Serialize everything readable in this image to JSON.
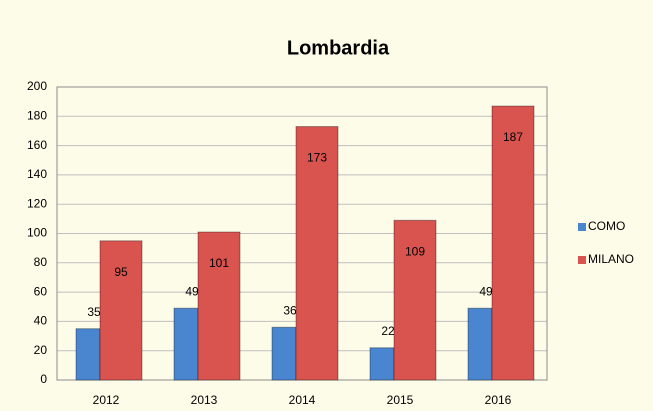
{
  "chart_data": {
    "type": "bar",
    "title": "Lombardia",
    "categories": [
      "2012",
      "2013",
      "2014",
      "2015",
      "2016"
    ],
    "series": [
      {
        "name": "COMO",
        "color": "#4a86d0",
        "values": [
          35,
          49,
          36,
          22,
          49
        ]
      },
      {
        "name": "MILANO",
        "color": "#d9534f",
        "values": [
          95,
          101,
          173,
          109,
          187
        ]
      }
    ],
    "ylim": [
      0,
      200
    ],
    "yticks": [
      0,
      20,
      40,
      60,
      80,
      100,
      120,
      140,
      160,
      180,
      200
    ],
    "grid": true,
    "legend": "right"
  }
}
